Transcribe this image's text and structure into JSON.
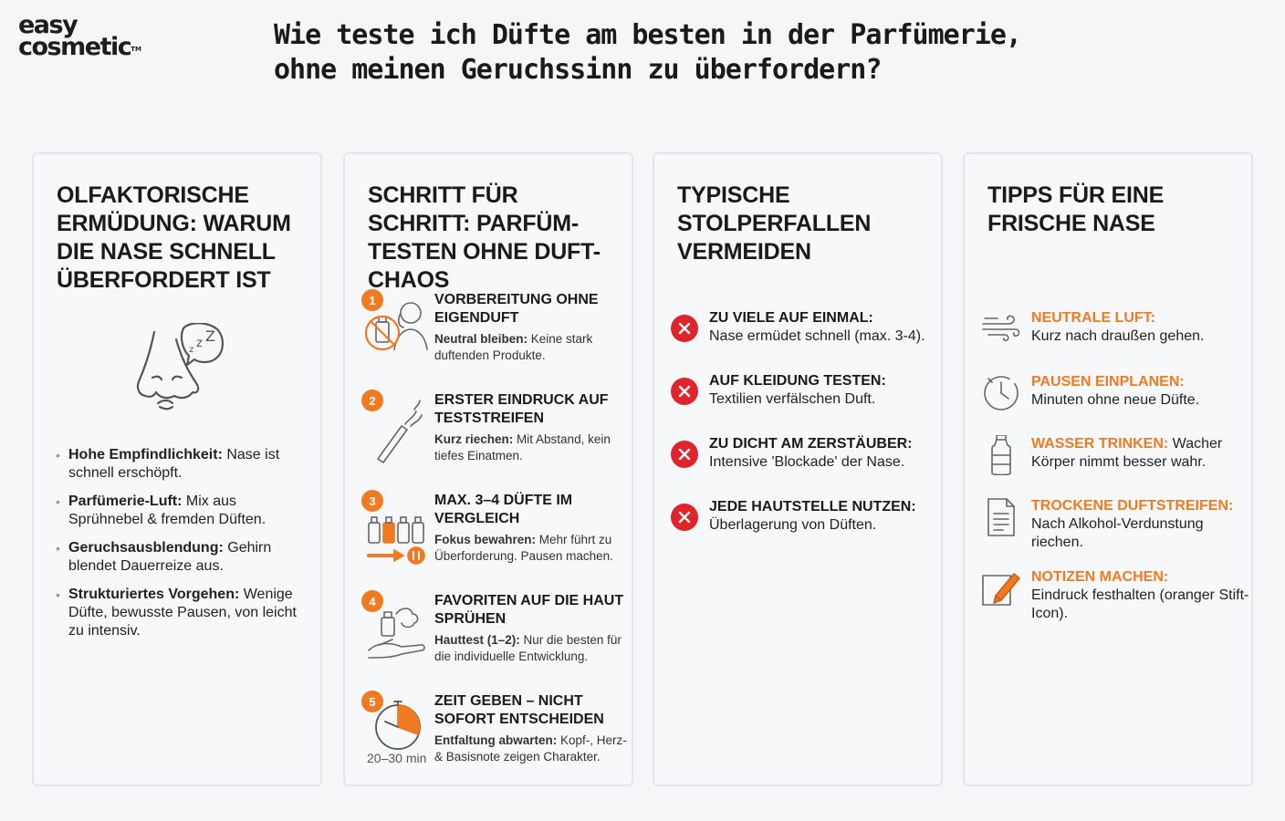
{
  "logo": {
    "line1": "easy",
    "line2": "cosmetic",
    "tm": "TM"
  },
  "headline": "Wie teste ich Düfte am besten in der Parfümerie, ohne meinen Geruchssinn zu überfordern?",
  "colors": {
    "accent": "#f07a22",
    "danger": "#e0242c",
    "card_bg": "#f7f8fa",
    "page_bg": "#f4f6f8"
  },
  "card1": {
    "title": "OLFAKTORISCHE ERMÜDUNG: WARUM DIE NASE SCHNELL ÜBERFORDERT IST",
    "icon": "tired-nose-zzz-icon",
    "bullets": [
      {
        "bold": "Hohe Empfindlichkeit:",
        "text": " Nase ist schnell erschöpft."
      },
      {
        "bold": "Parfümerie-Luft:",
        "text": " Mix aus Sprühnebel & fremden Düften."
      },
      {
        "bold": "Geruchsausblendung:",
        "text": " Gehirn blendet Dauerreize aus."
      },
      {
        "bold": "Strukturiertes Vorgehen:",
        "text": " Wenige Düfte, bewusste Pausen, von leicht zu intensiv."
      }
    ]
  },
  "card2": {
    "title": "SCHRITT FÜR SCHRITT: PARFÜM-TESTEN OHNE DUFT-CHAOS",
    "steps": [
      {
        "num": "1",
        "title": "VORBEREITUNG OHNE EIGENDUFT",
        "bold": "Neutral bleiben:",
        "text": " Keine stark duftenden Produkte.",
        "icon": "no-perfume-person-icon"
      },
      {
        "num": "2",
        "title": "ERSTER EINDRUCK AUF TESTSTREIFEN",
        "bold": "Kurz riechen:",
        "text": " Mit Abstand, kein tiefes Einatmen.",
        "icon": "test-strip-icon"
      },
      {
        "num": "3",
        "title": "MAX. 3–4 DÜFTE IM VERGLEICH",
        "bold": "Fokus bewahren:",
        "text": " Mehr führt zu Überforderung. Pausen machen.",
        "icon": "bottles-pause-icon"
      },
      {
        "num": "4",
        "title": "FAVORITEN AUF DIE HAUT SPRÜHEN",
        "bold": "Hauttest (1–2):",
        "text": " Nur die besten für die individuelle Entwicklung.",
        "icon": "spray-on-hand-icon"
      },
      {
        "num": "5",
        "title": "ZEIT GEBEN – NICHT SOFORT ENTSCHEIDEN",
        "bold": "Entfaltung abwarten:",
        "text": " Kopf-, Herz- & Basisnote zeigen Charakter.",
        "icon": "timer-icon",
        "time_label": "20–30 min"
      }
    ]
  },
  "card3": {
    "title": "TYPISCHE STOLPERFALLEN VERMEIDEN",
    "pitfalls": [
      {
        "title": "ZU VIELE AUF EINMAL:",
        "text": "Nase ermüdet schnell (max. 3-4)."
      },
      {
        "title": "AUF KLEIDUNG TESTEN:",
        "text": "Textilien verfälschen Duft."
      },
      {
        "title": "ZU DICHT AM ZERSTÄUBER:",
        "text": "Intensive 'Blockade' der Nase."
      },
      {
        "title": "JEDE HAUTSTELLE NUTZEN:",
        "text": "Überlagerung von Düften."
      }
    ]
  },
  "card4": {
    "title": "TIPPS FÜR EINE FRISCHE NASE",
    "tips": [
      {
        "title": "NEUTRALE LUFT:",
        "text": "Kurz nach draußen gehen.",
        "icon": "wind-icon",
        "inline": false
      },
      {
        "title": "PAUSEN EINPLANEN:",
        "text": "Minuten ohne neue Düfte.",
        "icon": "clock-icon",
        "inline": false
      },
      {
        "title": "WASSER TRINKEN:",
        "text": " Wacher Körper nimmt besser wahr.",
        "icon": "water-bottle-icon",
        "inline": true
      },
      {
        "title": "TROCKENE DUFTSTREIFEN:",
        "text": "Nach Alkohol-Verdunstung riechen.",
        "icon": "document-icon",
        "inline": false
      },
      {
        "title": "NOTIZEN MACHEN:",
        "text": "Eindruck festhalten (oranger Stift-Icon).",
        "icon": "pencil-note-icon",
        "inline": false
      }
    ]
  }
}
